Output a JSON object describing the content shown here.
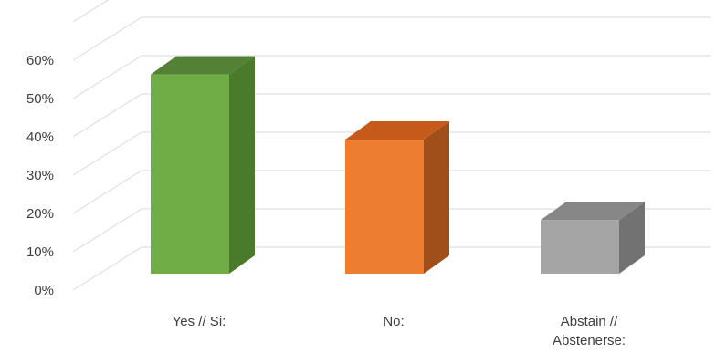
{
  "chart_data": {
    "type": "bar",
    "style": "3d-column",
    "categories": [
      [
        "Yes // Si:"
      ],
      [
        "No:"
      ],
      [
        "Abstain //",
        "Abstenerse:"
      ]
    ],
    "values": [
      0.52,
      0.35,
      0.14
    ],
    "ylim": [
      0,
      0.6
    ],
    "yticks": [
      "0%",
      "10%",
      "20%",
      "30%",
      "40%",
      "50%",
      "60%"
    ],
    "grid": true,
    "legend": "none",
    "colors": {
      "front": [
        "#70ad47",
        "#ed7d31",
        "#a5a5a5"
      ],
      "side": [
        "#4a7a2c",
        "#a04f1a",
        "#727272"
      ],
      "top": [
        "#538135",
        "#c55a1a",
        "#878787"
      ],
      "grid": "#d9d9d9",
      "text": "#404040"
    }
  }
}
